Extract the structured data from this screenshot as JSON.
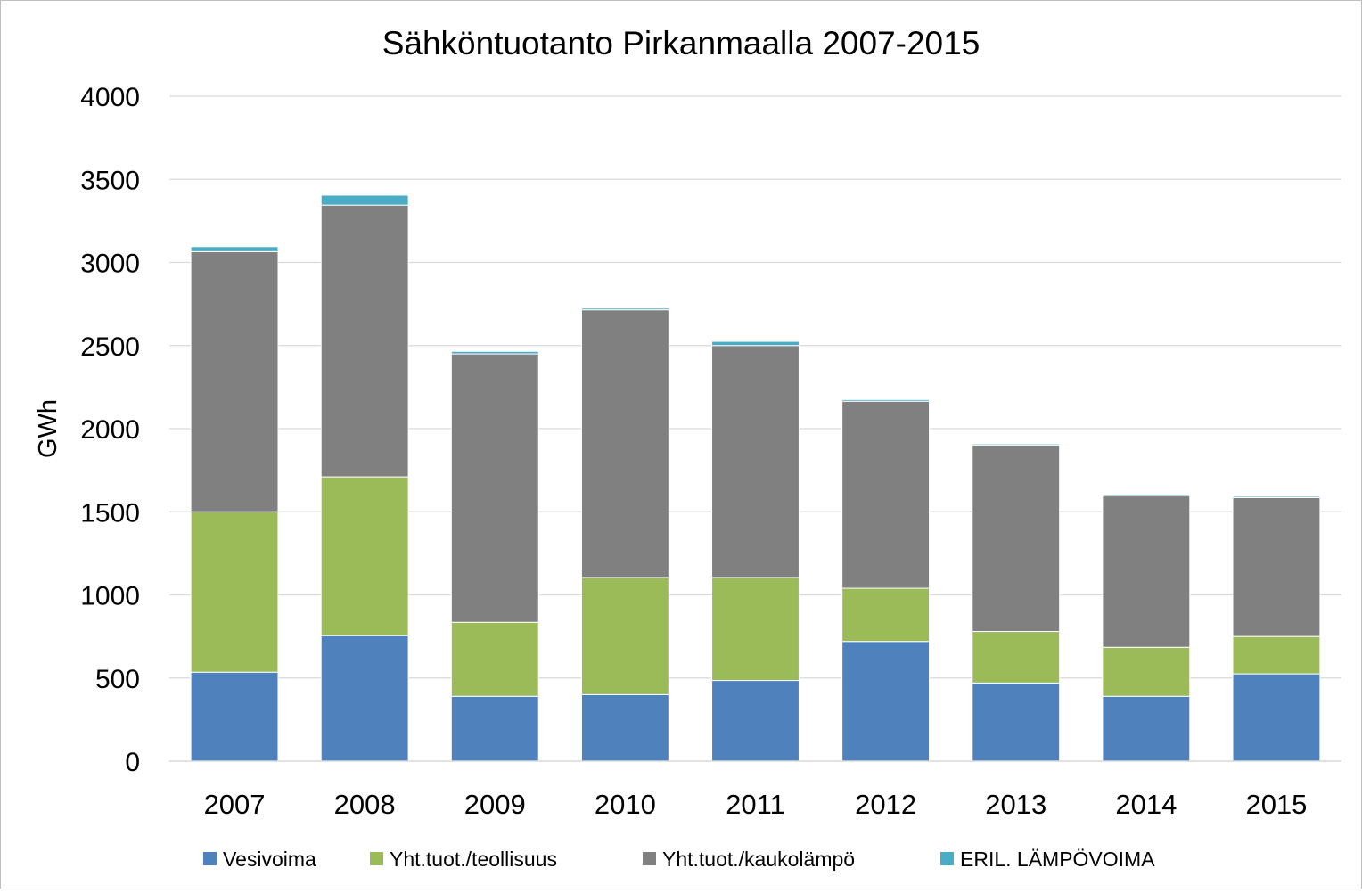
{
  "chart_data": {
    "type": "bar",
    "stacked": true,
    "title": "Sähköntuotanto Pirkanmaalla 2007-2015",
    "ylabel": "GWh",
    "xlabel": "",
    "ylim": [
      0,
      4000
    ],
    "yticks": [
      "0",
      "500",
      "1000",
      "1500",
      "2000",
      "2500",
      "3000",
      "3500",
      "4000"
    ],
    "grid": true,
    "legend_position": "bottom",
    "categories": [
      "2007",
      "2008",
      "2009",
      "2010",
      "2011",
      "2012",
      "2013",
      "2014",
      "2015"
    ],
    "series": [
      {
        "name": "Vesivoima",
        "color": "#4f81bd",
        "values": [
          535,
          755,
          390,
          400,
          485,
          720,
          470,
          390,
          525
        ]
      },
      {
        "name": "Yht.tuot./teollisuus",
        "color": "#9bbb59",
        "values": [
          965,
          955,
          445,
          705,
          620,
          320,
          310,
          295,
          225
        ]
      },
      {
        "name": "Yht.tuot./kaukolämpö",
        "color": "#808080",
        "values": [
          1565,
          1635,
          1615,
          1610,
          1395,
          1125,
          1120,
          910,
          835
        ]
      },
      {
        "name": "ERIL. LÄMPÖVOIMA",
        "color": "#4bacc6",
        "values": [
          30,
          60,
          15,
          10,
          25,
          10,
          8,
          8,
          8
        ]
      }
    ]
  }
}
